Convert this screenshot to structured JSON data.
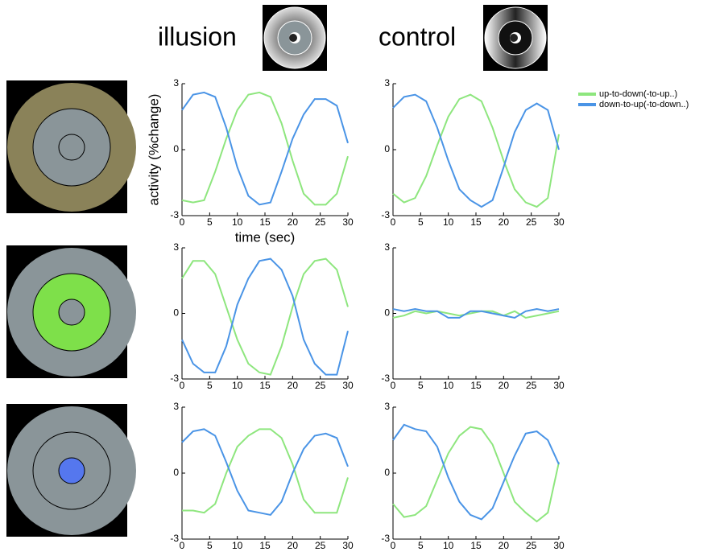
{
  "column_titles": [
    "illusion",
    "control"
  ],
  "chart_data": [
    {
      "type": "line",
      "y_label": "activity (%change)",
      "x_label": "time (sec)",
      "x": [
        0,
        2,
        4,
        6,
        8,
        10,
        12,
        14,
        16,
        18,
        20,
        22,
        24,
        26,
        28,
        30
      ],
      "xlim": [
        0,
        30
      ],
      "xticks": [
        0,
        5,
        10,
        15,
        20,
        25,
        30
      ],
      "ylim": [
        -3,
        3
      ],
      "yticks": [
        -3,
        0,
        3
      ],
      "series": [
        {
          "name": "up-to-down(-to-up..)",
          "color": "#8ee67e",
          "values": [
            -2.3,
            -2.4,
            -2.3,
            -1,
            0.5,
            1.8,
            2.5,
            2.6,
            2.4,
            1.2,
            -0.5,
            -2,
            -2.5,
            -2.5,
            -2,
            -0.3
          ]
        },
        {
          "name": "down-to-up(-to-down..)",
          "color": "#4a94e6",
          "values": [
            1.8,
            2.5,
            2.6,
            2.4,
            1,
            -0.8,
            -2.1,
            -2.5,
            -2.4,
            -1,
            0.5,
            1.6,
            2.3,
            2.3,
            2,
            0.3
          ]
        }
      ]
    },
    {
      "type": "line",
      "x": [
        0,
        2,
        4,
        6,
        8,
        10,
        12,
        14,
        16,
        18,
        20,
        22,
        24,
        26,
        28,
        30
      ],
      "xlim": [
        0,
        30
      ],
      "xticks": [
        0,
        5,
        10,
        15,
        20,
        25,
        30
      ],
      "ylim": [
        -3,
        3
      ],
      "yticks": [
        -3,
        0,
        3
      ],
      "series": [
        {
          "name": "up-to-down(-to-up..)",
          "color": "#8ee67e",
          "values": [
            -2,
            -2.4,
            -2.2,
            -1.2,
            0.2,
            1.5,
            2.3,
            2.5,
            2.2,
            1,
            -0.5,
            -1.8,
            -2.4,
            -2.6,
            -2.2,
            0.7
          ]
        },
        {
          "name": "down-to-up(-to-down..)",
          "color": "#4a94e6",
          "values": [
            1.9,
            2.4,
            2.5,
            2.2,
            1,
            -0.5,
            -1.8,
            -2.3,
            -2.6,
            -2.3,
            -0.8,
            0.8,
            1.8,
            2.1,
            1.8,
            0
          ]
        }
      ]
    },
    {
      "type": "line",
      "x": [
        0,
        2,
        4,
        6,
        8,
        10,
        12,
        14,
        16,
        18,
        20,
        22,
        24,
        26,
        28,
        30
      ],
      "xlim": [
        0,
        30
      ],
      "xticks": [
        0,
        5,
        10,
        15,
        20,
        25,
        30
      ],
      "ylim": [
        -3,
        3
      ],
      "yticks": [
        -3,
        0,
        3
      ],
      "series": [
        {
          "name": "up-to-down(-to-up..)",
          "color": "#8ee67e",
          "values": [
            1.6,
            2.4,
            2.4,
            1.8,
            0.3,
            -1.2,
            -2.3,
            -2.7,
            -2.8,
            -1.5,
            0.3,
            1.8,
            2.4,
            2.5,
            2,
            0.3
          ]
        },
        {
          "name": "down-to-up(-to-down..)",
          "color": "#4a94e6",
          "values": [
            -1.2,
            -2.3,
            -2.7,
            -2.7,
            -1.5,
            0.4,
            1.6,
            2.4,
            2.5,
            2,
            0.8,
            -1.2,
            -2.3,
            -2.8,
            -2.8,
            -0.8
          ]
        }
      ]
    },
    {
      "type": "line",
      "x": [
        0,
        2,
        4,
        6,
        8,
        10,
        12,
        14,
        16,
        18,
        20,
        22,
        24,
        26,
        28,
        30
      ],
      "xlim": [
        0,
        30
      ],
      "xticks": [
        0,
        5,
        10,
        15,
        20,
        25,
        30
      ],
      "ylim": [
        -3,
        3
      ],
      "yticks": [
        -3,
        0,
        3
      ],
      "series": [
        {
          "name": "up-to-down(-to-up..)",
          "color": "#8ee67e",
          "values": [
            -0.2,
            -0.1,
            0.1,
            0,
            0.1,
            0,
            -0.1,
            0,
            0.1,
            0.1,
            -0.1,
            0.1,
            -0.2,
            -0.1,
            0,
            0.1
          ]
        },
        {
          "name": "down-to-up(-to-down..)",
          "color": "#4a94e6",
          "values": [
            0.2,
            0.1,
            0.2,
            0.1,
            0.1,
            -0.2,
            -0.2,
            0.1,
            0.1,
            0,
            -0.1,
            -0.2,
            0.1,
            0.2,
            0.1,
            0.2
          ]
        }
      ]
    },
    {
      "type": "line",
      "x": [
        0,
        2,
        4,
        6,
        8,
        10,
        12,
        14,
        16,
        18,
        20,
        22,
        24,
        26,
        28,
        30
      ],
      "xlim": [
        0,
        30
      ],
      "xticks": [
        0,
        5,
        10,
        15,
        20,
        25,
        30
      ],
      "ylim": [
        -3,
        3
      ],
      "yticks": [
        -3,
        0,
        3
      ],
      "series": [
        {
          "name": "up-to-down(-to-up..)",
          "color": "#8ee67e",
          "values": [
            -1.7,
            -1.7,
            -1.8,
            -1.4,
            0,
            1.2,
            1.7,
            2,
            2,
            1.6,
            0.4,
            -1.2,
            -1.8,
            -1.8,
            -1.8,
            -0.2
          ]
        },
        {
          "name": "down-to-up(-to-down..)",
          "color": "#4a94e6",
          "values": [
            1.4,
            1.9,
            2,
            1.7,
            0.5,
            -0.8,
            -1.7,
            -1.8,
            -1.9,
            -1.3,
            0,
            1.1,
            1.7,
            1.8,
            1.6,
            0.3
          ]
        }
      ]
    },
    {
      "type": "line",
      "x": [
        0,
        2,
        4,
        6,
        8,
        10,
        12,
        14,
        16,
        18,
        20,
        22,
        24,
        26,
        28,
        30
      ],
      "xlim": [
        0,
        30
      ],
      "xticks": [
        0,
        5,
        10,
        15,
        20,
        25,
        30
      ],
      "ylim": [
        -3,
        3
      ],
      "yticks": [
        -3,
        0,
        3
      ],
      "series": [
        {
          "name": "up-to-down(-to-up..)",
          "color": "#8ee67e",
          "values": [
            -1.4,
            -2,
            -1.9,
            -1.5,
            -0.3,
            0.9,
            1.7,
            2.1,
            2,
            1.3,
            0,
            -1.3,
            -1.8,
            -2.2,
            -1.8,
            0.5
          ]
        },
        {
          "name": "down-to-up(-to-down..)",
          "color": "#4a94e6",
          "values": [
            1.5,
            2.2,
            2,
            1.9,
            1.2,
            -0.2,
            -1.3,
            -1.9,
            -2.1,
            -1.6,
            -0.4,
            0.8,
            1.8,
            1.9,
            1.5,
            0.4
          ]
        }
      ]
    }
  ]
}
